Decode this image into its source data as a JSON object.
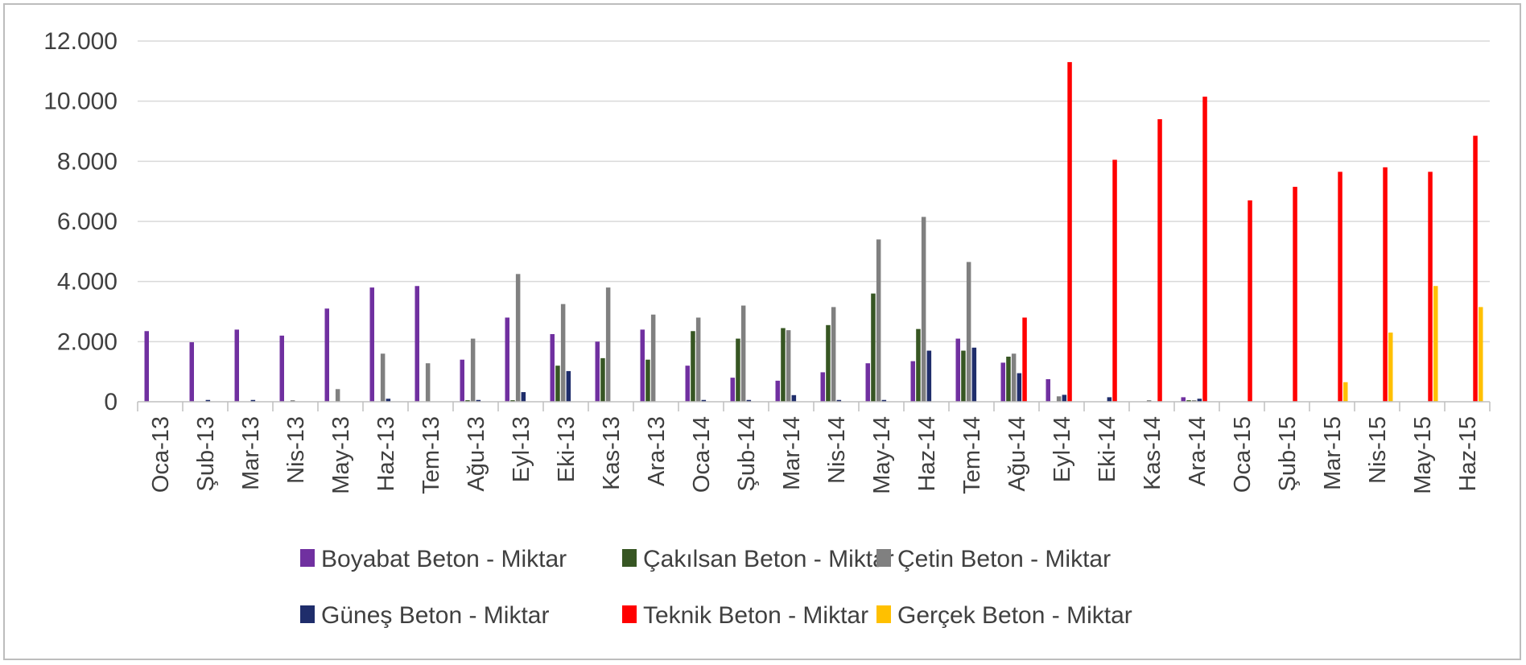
{
  "chart_data": {
    "type": "bar",
    "title": "",
    "xlabel": "",
    "ylabel": "",
    "ylim": [
      0,
      12000
    ],
    "yticks": [
      0,
      2000,
      4000,
      6000,
      8000,
      10000,
      12000
    ],
    "ytick_labels": [
      "0",
      "2.000",
      "4.000",
      "6.000",
      "8.000",
      "10.000",
      "12.000"
    ],
    "grid": true,
    "legend_position": "bottom",
    "categories": [
      "Oca-13",
      "Şub-13",
      "Mar-13",
      "Nis-13",
      "May-13",
      "Haz-13",
      "Tem-13",
      "Ağu-13",
      "Eyl-13",
      "Eki-13",
      "Kas-13",
      "Ara-13",
      "Oca-14",
      "Şub-14",
      "Mar-14",
      "Nis-14",
      "May-14",
      "Haz-14",
      "Tem-14",
      "Ağu-14",
      "Eyl-14",
      "Eki-14",
      "Kas-14",
      "Ara-14",
      "Oca-15",
      "Şub-15",
      "Mar-15",
      "Nis-15",
      "May-15",
      "Haz-15"
    ],
    "series": [
      {
        "name": "Boyabat Beton - Miktar",
        "color": "#7030a0",
        "values": [
          2350,
          1980,
          2400,
          2200,
          3100,
          3800,
          3850,
          1400,
          2800,
          2250,
          2000,
          2400,
          1200,
          800,
          700,
          980,
          1280,
          1350,
          2100,
          1300,
          750,
          0,
          0,
          150,
          0,
          0,
          0,
          0,
          0,
          0
        ]
      },
      {
        "name": "Çakılsan Beton - Miktar",
        "color": "#375623",
        "values": [
          0,
          0,
          0,
          0,
          0,
          0,
          0,
          50,
          50,
          1200,
          1450,
          1400,
          2350,
          2100,
          2450,
          2550,
          3600,
          2420,
          1700,
          1500,
          0,
          0,
          0,
          50,
          0,
          0,
          0,
          0,
          0,
          0
        ]
      },
      {
        "name": "Çetin Beton - Miktar",
        "color": "#808080",
        "values": [
          0,
          0,
          0,
          50,
          420,
          1600,
          1280,
          2100,
          4250,
          3250,
          3800,
          2900,
          2800,
          3200,
          2380,
          3150,
          5400,
          6150,
          4650,
          1600,
          180,
          0,
          50,
          50,
          0,
          0,
          0,
          0,
          0,
          0
        ]
      },
      {
        "name": "Güneş Beton - Miktar",
        "color": "#1f2d6b",
        "values": [
          0,
          60,
          60,
          0,
          0,
          100,
          0,
          60,
          320,
          1020,
          0,
          0,
          60,
          60,
          220,
          60,
          60,
          1700,
          1800,
          950,
          230,
          150,
          0,
          100,
          0,
          0,
          0,
          0,
          0,
          0
        ]
      },
      {
        "name": "Teknik Beton - Miktar",
        "color": "#ff0000",
        "values": [
          0,
          0,
          0,
          0,
          0,
          0,
          0,
          0,
          0,
          0,
          0,
          0,
          0,
          0,
          0,
          0,
          0,
          0,
          0,
          2800,
          11300,
          8050,
          9400,
          10150,
          6700,
          7150,
          7650,
          7800,
          7650,
          8850
        ]
      },
      {
        "name": "Gerçek Beton - Miktar",
        "color": "#ffc000",
        "values": [
          0,
          0,
          0,
          0,
          0,
          0,
          0,
          0,
          0,
          0,
          0,
          0,
          0,
          0,
          0,
          0,
          0,
          0,
          0,
          0,
          0,
          0,
          0,
          0,
          0,
          0,
          650,
          2300,
          3850,
          3150
        ]
      }
    ]
  }
}
